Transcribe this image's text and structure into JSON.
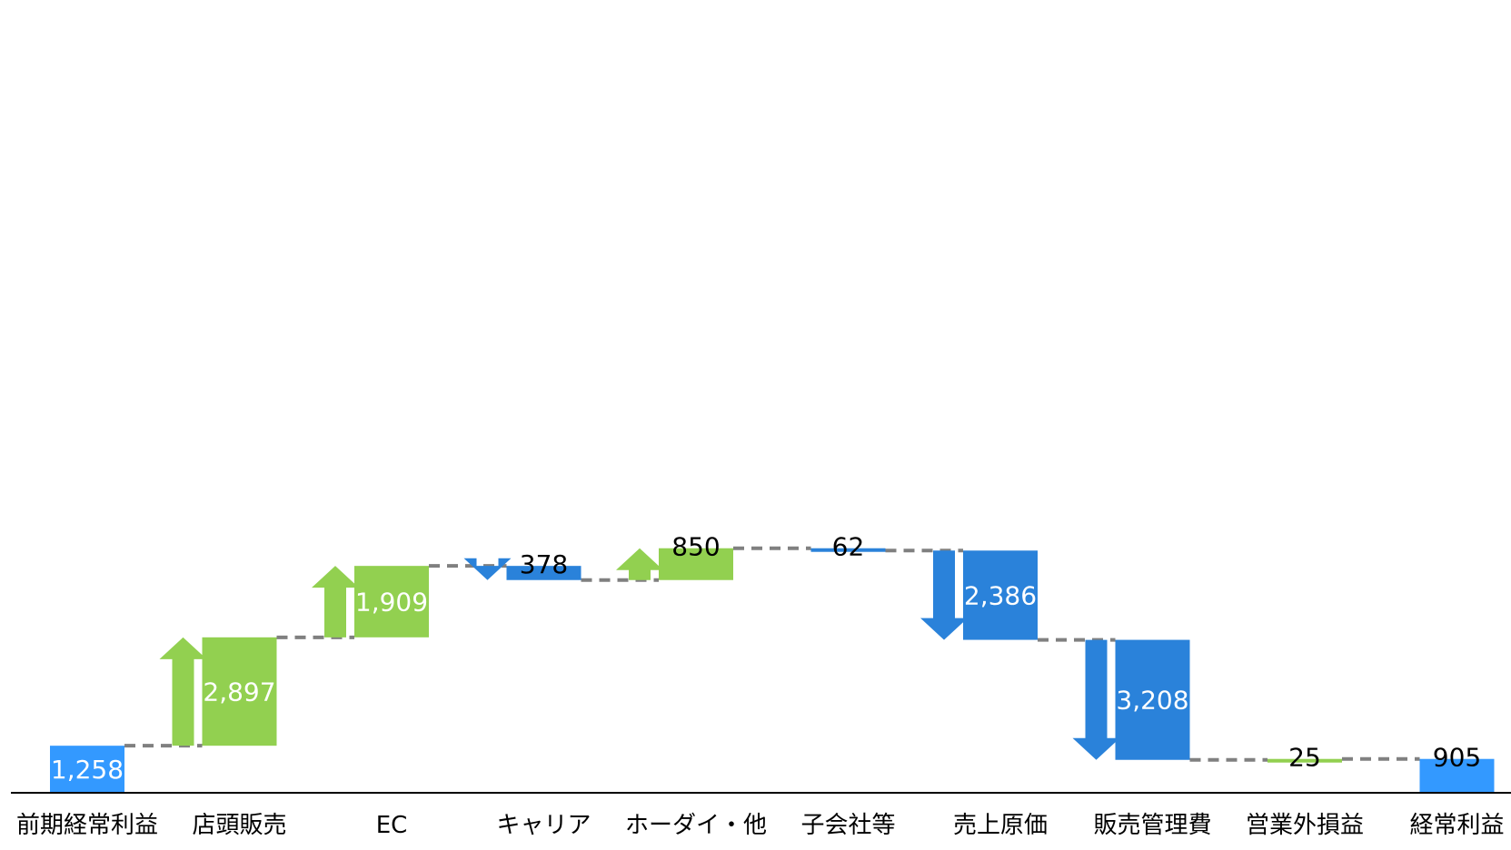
{
  "chart_data": {
    "type": "waterfall",
    "title": "",
    "xlabel": "",
    "ylabel": "",
    "ylim": [
      0,
      9000
    ],
    "grid": false,
    "legend": "none",
    "colors": {
      "total": "#3399FF",
      "increase": "#92D050",
      "decrease": "#2A82DA",
      "connector": "#808080",
      "axis": "#000000"
    },
    "steps": [
      {
        "category": "前期経常利益",
        "label": "1,258",
        "value": 1258,
        "kind": "total",
        "arrow": false
      },
      {
        "category": "店頭販売",
        "label": "2,897",
        "value": 2897,
        "kind": "increase",
        "arrow": true
      },
      {
        "category": "EC",
        "label": "1,909",
        "value": 1909,
        "kind": "increase",
        "arrow": true
      },
      {
        "category": "キャリア",
        "label": "378",
        "value": -378,
        "kind": "decrease",
        "arrow": true
      },
      {
        "category": "ホーダイ・他",
        "label": "850",
        "value": 850,
        "kind": "increase",
        "arrow": true
      },
      {
        "category": "子会社等",
        "label": "62",
        "value": -62,
        "kind": "decrease",
        "arrow": false
      },
      {
        "category": "売上原価",
        "label": "2,386",
        "value": -2386,
        "kind": "decrease",
        "arrow": true
      },
      {
        "category": "販売管理費",
        "label": "3,208",
        "value": -3208,
        "kind": "decrease",
        "arrow": true
      },
      {
        "category": "営業外損益",
        "label": "25",
        "value": 25,
        "kind": "increase",
        "arrow": false
      },
      {
        "category": "経常利益",
        "label": "905",
        "value": 905,
        "kind": "total",
        "arrow": false
      }
    ]
  }
}
